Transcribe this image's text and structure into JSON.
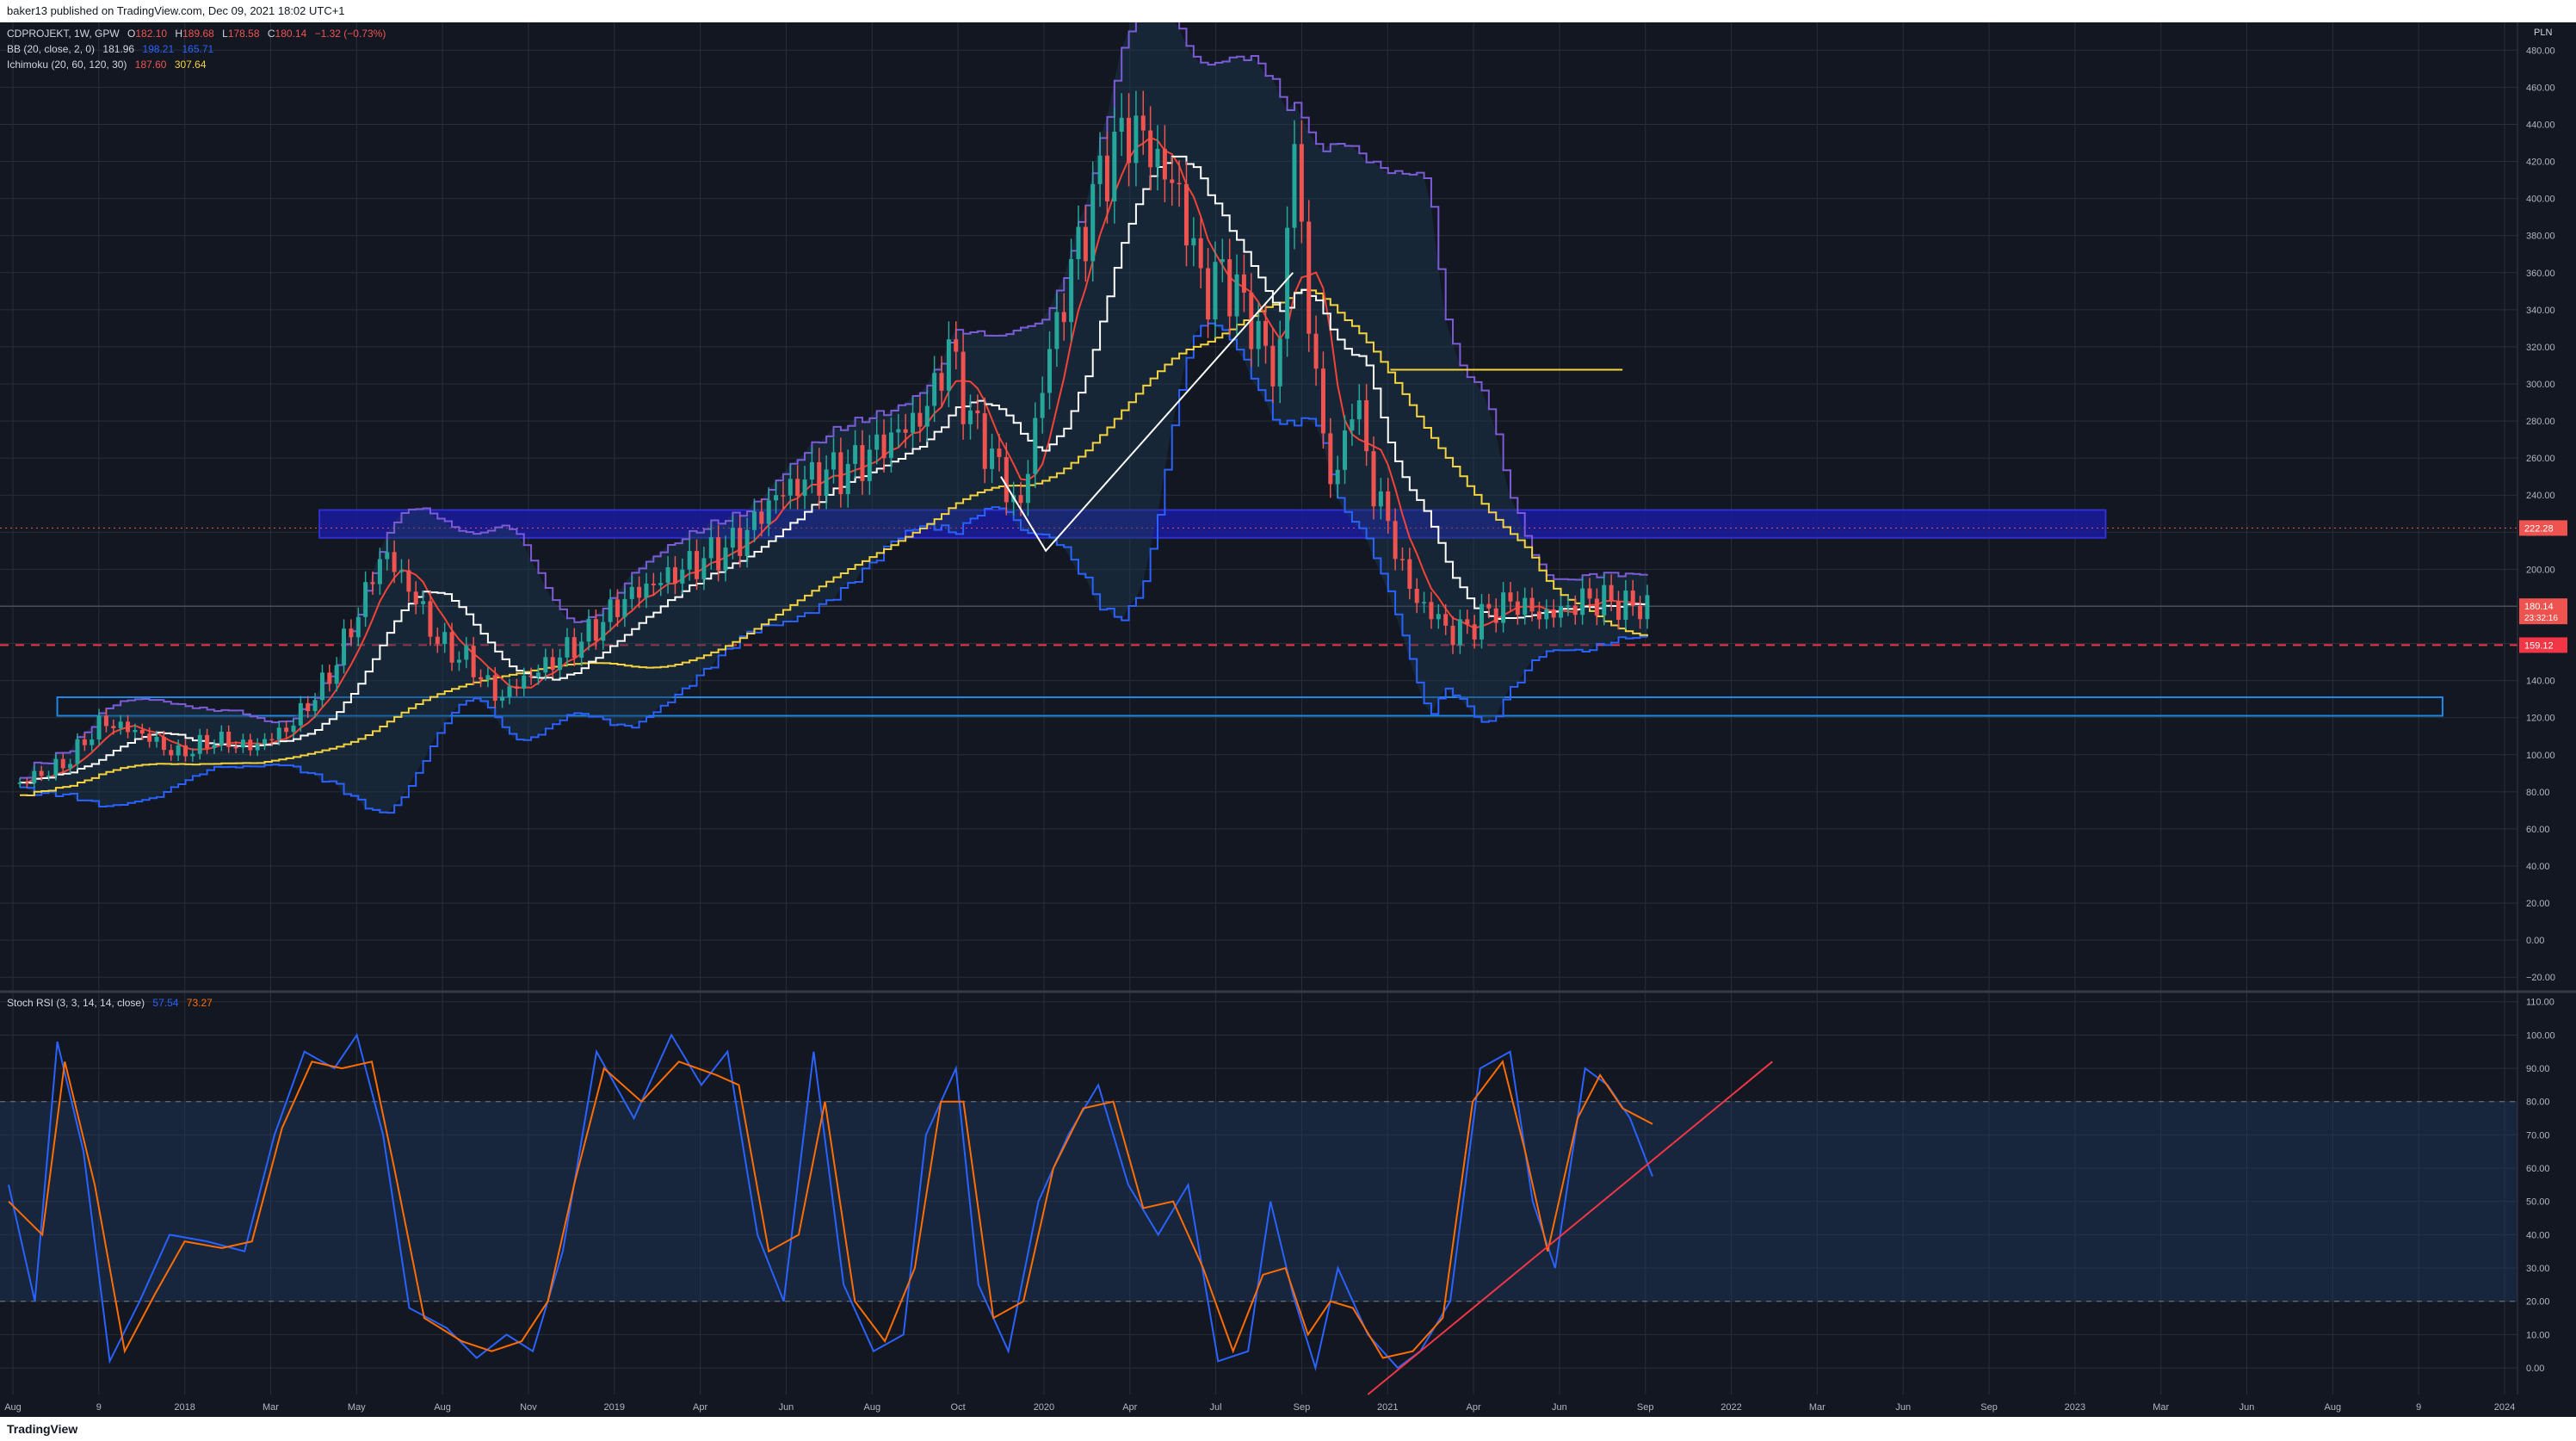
{
  "header": {
    "publisher": "baker13 published on TradingView.com, Dec 09, 2021 18:02 UTC+1"
  },
  "footer": {
    "logo": "TradingView"
  },
  "main_legend": {
    "symbol": "CDPROJEKT, 1W, GPW",
    "o_label": "O",
    "o": "182.10",
    "h_label": "H",
    "h": "189.68",
    "l_label": "L",
    "l": "178.58",
    "c_label": "C",
    "c": "180.14",
    "chg": "−1.32 (−0.73%)",
    "bb": {
      "name": "BB (20, close, 2, 0)",
      "v1": "181.96",
      "v2": "198.21",
      "v3": "165.71"
    },
    "ichimoku": {
      "name": "Ichimoku (20, 60, 120, 30)",
      "v1": "187.60",
      "v2": "307.64"
    }
  },
  "stoch_legend": {
    "name": "Stoch RSI (3, 3, 14, 14, close)",
    "k": "57.54",
    "d": "73.27"
  },
  "currency": "PLN",
  "colors": {
    "bg": "#131722",
    "grid": "#2a2e39",
    "up": "#26a69a",
    "down": "#ef5350",
    "bb": "#7b5cd6",
    "cloud_blue": "#2962ff",
    "kijun": "#ffffff",
    "tenkan": "#f44336",
    "span": "#f5d33e",
    "stoch_k": "#2962ff",
    "stoch_d": "#ff6d00"
  },
  "chart_data": [
    {
      "type": "candlestick",
      "title": "CDPROJEKT, 1W, GPW",
      "y_unit": "PLN",
      "ylim": [
        -25,
        495
      ],
      "x_ticks": [
        "Aug",
        "9",
        "2018",
        "Mar",
        "May",
        "Aug",
        "Nov",
        "2019",
        "Apr",
        "Jun",
        "Aug",
        "Oct",
        "2020",
        "Apr",
        "Jul",
        "Sep",
        "2021",
        "Apr",
        "Jun",
        "Sep",
        "2022",
        "Mar",
        "Jun",
        "Sep",
        "2023",
        "Mar",
        "Jun",
        "Aug",
        "9",
        "2024"
      ],
      "y_ticks": [
        "480.00",
        "460.00",
        "440.00",
        "420.00",
        "400.00",
        "380.00",
        "360.00",
        "340.00",
        "320.00",
        "300.00",
        "280.00",
        "260.00",
        "240.00",
        "220.00",
        "200.00",
        "180.00",
        "160.00",
        "140.00",
        "120.00",
        "100.00",
        "80.00",
        "60.00",
        "40.00",
        "20.00",
        "0.00",
        "−20.00"
      ],
      "price_labels": {
        "top": "222.28",
        "last": "180.14",
        "countdown": "23:32:16",
        "dashed": "159.12"
      },
      "close_path": [
        [
          2017.58,
          85
        ],
        [
          2017.7,
          95
        ],
        [
          2017.8,
          118
        ],
        [
          2017.9,
          112
        ],
        [
          2018.0,
          100
        ],
        [
          2018.1,
          108
        ],
        [
          2018.2,
          104
        ],
        [
          2018.3,
          115
        ],
        [
          2018.4,
          140
        ],
        [
          2018.48,
          175
        ],
        [
          2018.55,
          210
        ],
        [
          2018.62,
          190
        ],
        [
          2018.7,
          160
        ],
        [
          2018.78,
          150
        ],
        [
          2018.86,
          130
        ],
        [
          2018.92,
          140
        ],
        [
          2019.0,
          150
        ],
        [
          2019.1,
          165
        ],
        [
          2019.2,
          185
        ],
        [
          2019.3,
          195
        ],
        [
          2019.4,
          205
        ],
        [
          2019.5,
          215
        ],
        [
          2019.6,
          240
        ],
        [
          2019.7,
          250
        ],
        [
          2019.8,
          255
        ],
        [
          2019.9,
          270
        ],
        [
          2020.0,
          285
        ],
        [
          2020.06,
          320
        ],
        [
          2020.12,
          280
        ],
        [
          2020.18,
          260
        ],
        [
          2020.25,
          230
        ],
        [
          2020.32,
          310
        ],
        [
          2020.4,
          370
        ],
        [
          2020.48,
          420
        ],
        [
          2020.55,
          440
        ],
        [
          2020.62,
          420
        ],
        [
          2020.68,
          400
        ],
        [
          2020.74,
          350
        ],
        [
          2020.8,
          360
        ],
        [
          2020.88,
          330
        ],
        [
          2020.94,
          300
        ],
        [
          2020.98,
          440
        ],
        [
          2021.02,
          340
        ],
        [
          2021.06,
          270
        ],
        [
          2021.1,
          245
        ],
        [
          2021.14,
          300
        ],
        [
          2021.18,
          255
        ],
        [
          2021.24,
          220
        ],
        [
          2021.3,
          185
        ],
        [
          2021.36,
          175
        ],
        [
          2021.4,
          165
        ],
        [
          2021.46,
          170
        ],
        [
          2021.52,
          180
        ],
        [
          2021.58,
          182
        ],
        [
          2021.64,
          175
        ],
        [
          2021.7,
          178
        ],
        [
          2021.76,
          184
        ],
        [
          2021.82,
          183
        ],
        [
          2021.88,
          180
        ],
        [
          2021.94,
          180.14
        ]
      ],
      "hlines": [
        {
          "name": "resistance-zone",
          "kind": "zone",
          "y1": 217,
          "y2": 232,
          "x1": 2018.38,
          "x2": 2023.15
        },
        {
          "name": "support-zone",
          "kind": "zone",
          "y1": 121,
          "y2": 131,
          "x1": 2017.68,
          "x2": 2024.05
        },
        {
          "name": "red-dashed",
          "kind": "dash",
          "y": 159.12
        },
        {
          "name": "dotted-222",
          "kind": "dot",
          "y": 222.28
        },
        {
          "name": "last-price",
          "kind": "solid",
          "y": 180.14
        }
      ]
    },
    {
      "type": "line",
      "title": "Stoch RSI (3, 3, 14, 14, close)",
      "ylim": [
        -8,
        112
      ],
      "y_ticks": [
        "110.00",
        "100.00",
        "90.00",
        "80.00",
        "70.00",
        "60.00",
        "50.00",
        "40.00",
        "30.00",
        "20.00",
        "10.00",
        "0.00"
      ],
      "band": [
        20,
        80
      ],
      "series": [
        {
          "name": "K",
          "color": "#2962ff",
          "points": [
            [
              2017.55,
              55
            ],
            [
              2017.62,
              20
            ],
            [
              2017.68,
              98
            ],
            [
              2017.75,
              65
            ],
            [
              2017.82,
              2
            ],
            [
              2017.9,
              20
            ],
            [
              2017.98,
              40
            ],
            [
              2018.08,
              38
            ],
            [
              2018.18,
              35
            ],
            [
              2018.26,
              70
            ],
            [
              2018.34,
              95
            ],
            [
              2018.42,
              90
            ],
            [
              2018.48,
              100
            ],
            [
              2018.55,
              70
            ],
            [
              2018.62,
              18
            ],
            [
              2018.72,
              12
            ],
            [
              2018.8,
              3
            ],
            [
              2018.88,
              10
            ],
            [
              2018.95,
              5
            ],
            [
              2019.03,
              35
            ],
            [
              2019.12,
              95
            ],
            [
              2019.22,
              75
            ],
            [
              2019.32,
              100
            ],
            [
              2019.4,
              85
            ],
            [
              2019.47,
              95
            ],
            [
              2019.55,
              40
            ],
            [
              2019.62,
              20
            ],
            [
              2019.7,
              95
            ],
            [
              2019.78,
              25
            ],
            [
              2019.86,
              5
            ],
            [
              2019.94,
              10
            ],
            [
              2020.0,
              70
            ],
            [
              2020.08,
              90
            ],
            [
              2020.14,
              25
            ],
            [
              2020.22,
              5
            ],
            [
              2020.3,
              50
            ],
            [
              2020.38,
              70
            ],
            [
              2020.46,
              85
            ],
            [
              2020.54,
              55
            ],
            [
              2020.62,
              40
            ],
            [
              2020.7,
              55
            ],
            [
              2020.78,
              2
            ],
            [
              2020.86,
              5
            ],
            [
              2020.92,
              50
            ],
            [
              2020.98,
              22
            ],
            [
              2021.04,
              0
            ],
            [
              2021.1,
              30
            ],
            [
              2021.18,
              10
            ],
            [
              2021.26,
              0
            ],
            [
              2021.32,
              5
            ],
            [
              2021.4,
              20
            ],
            [
              2021.48,
              90
            ],
            [
              2021.56,
              95
            ],
            [
              2021.62,
              50
            ],
            [
              2021.68,
              30
            ],
            [
              2021.76,
              90
            ],
            [
              2021.82,
              85
            ],
            [
              2021.88,
              75
            ],
            [
              2021.94,
              57.54
            ]
          ]
        },
        {
          "name": "D",
          "color": "#ff6d00",
          "points": [
            [
              2017.55,
              50
            ],
            [
              2017.64,
              40
            ],
            [
              2017.7,
              92
            ],
            [
              2017.78,
              55
            ],
            [
              2017.86,
              5
            ],
            [
              2017.94,
              22
            ],
            [
              2018.02,
              38
            ],
            [
              2018.12,
              36
            ],
            [
              2018.2,
              38
            ],
            [
              2018.28,
              72
            ],
            [
              2018.36,
              92
            ],
            [
              2018.44,
              90
            ],
            [
              2018.52,
              92
            ],
            [
              2018.58,
              60
            ],
            [
              2018.66,
              15
            ],
            [
              2018.76,
              8
            ],
            [
              2018.84,
              5
            ],
            [
              2018.92,
              8
            ],
            [
              2018.99,
              20
            ],
            [
              2019.06,
              55
            ],
            [
              2019.14,
              90
            ],
            [
              2019.24,
              80
            ],
            [
              2019.34,
              92
            ],
            [
              2019.44,
              88
            ],
            [
              2019.5,
              85
            ],
            [
              2019.58,
              35
            ],
            [
              2019.66,
              40
            ],
            [
              2019.73,
              80
            ],
            [
              2019.81,
              20
            ],
            [
              2019.89,
              8
            ],
            [
              2019.97,
              30
            ],
            [
              2020.04,
              80
            ],
            [
              2020.1,
              80
            ],
            [
              2020.18,
              15
            ],
            [
              2020.26,
              20
            ],
            [
              2020.34,
              60
            ],
            [
              2020.42,
              78
            ],
            [
              2020.5,
              80
            ],
            [
              2020.58,
              48
            ],
            [
              2020.66,
              50
            ],
            [
              2020.74,
              30
            ],
            [
              2020.82,
              5
            ],
            [
              2020.9,
              28
            ],
            [
              2020.96,
              30
            ],
            [
              2021.02,
              10
            ],
            [
              2021.08,
              20
            ],
            [
              2021.14,
              18
            ],
            [
              2021.22,
              3
            ],
            [
              2021.3,
              5
            ],
            [
              2021.38,
              15
            ],
            [
              2021.46,
              80
            ],
            [
              2021.54,
              92
            ],
            [
              2021.6,
              65
            ],
            [
              2021.66,
              35
            ],
            [
              2021.74,
              75
            ],
            [
              2021.8,
              88
            ],
            [
              2021.86,
              78
            ],
            [
              2021.94,
              73.27
            ]
          ]
        }
      ],
      "trendline": {
        "from": [
          2021.18,
          -8
        ],
        "to": [
          2022.26,
          92
        ]
      }
    }
  ]
}
